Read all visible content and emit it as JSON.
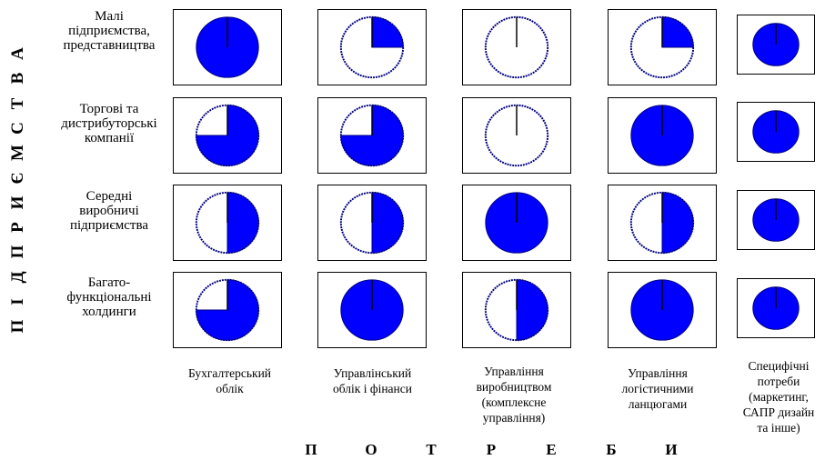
{
  "side_title_letters": [
    "П",
    "І",
    "Д",
    "П",
    "Р",
    "И",
    "Є",
    "М",
    "С",
    "Т",
    "В",
    "А"
  ],
  "bottom_title_letters": [
    "П",
    "О",
    "Т",
    "Р",
    "Е",
    "Б",
    "И"
  ],
  "rows": [
    {
      "label": "Малі\nпідприємства,\nпредставництва"
    },
    {
      "label": "Торгові та\nдистрибуторські\nкомпанії"
    },
    {
      "label": "Середні\nвиробничі\nпідприємства"
    },
    {
      "label": "Багато-\nфункціональні\nхолдинги"
    }
  ],
  "columns": [
    {
      "label": "Бухгалтерський\nоблік"
    },
    {
      "label": "Управлінський\nоблік і фінанси"
    },
    {
      "label": "Управління\nвиробництвом\n(комплексне\nуправління)"
    },
    {
      "label": "Управління\nлогістичними\nланцюгами"
    },
    {
      "label": "Специфічні\nпотреби\n(маркетинг,\nСАПР дизайн\nта інше)"
    }
  ],
  "chart_data": {
    "type": "table",
    "description_of_values": "fraction of Harvey ball filled",
    "values": [
      [
        1.0,
        0.25,
        0.0,
        0.25,
        1.0
      ],
      [
        0.75,
        0.75,
        0.0,
        1.0,
        1.0
      ],
      [
        0.5,
        0.5,
        1.0,
        0.5,
        1.0
      ],
      [
        0.75,
        1.0,
        0.5,
        1.0,
        1.0
      ]
    ]
  },
  "colors": {
    "fill": "#0000ff",
    "outline": "#000080",
    "line": "#000000"
  }
}
